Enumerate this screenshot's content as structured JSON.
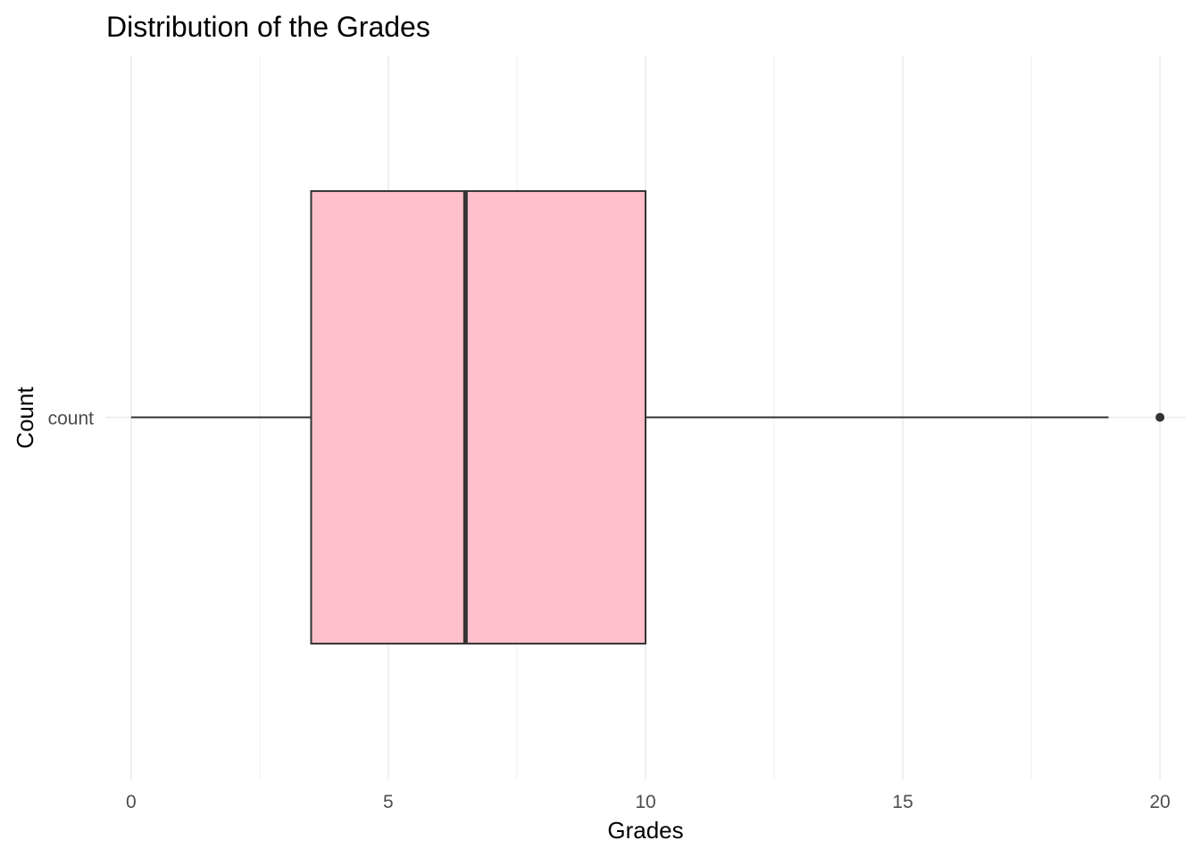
{
  "chart_data": {
    "type": "boxplot",
    "orientation": "horizontal",
    "title": "Distribution of the Grades",
    "xlabel": "Grades",
    "ylabel": "Count",
    "xlim": [
      -0.5,
      20.5
    ],
    "x_ticks": [
      0,
      5,
      10,
      15,
      20
    ],
    "x_tick_labels": [
      "0",
      "5",
      "10",
      "15",
      "20"
    ],
    "categories": [
      "count"
    ],
    "boxes": [
      {
        "category": "count",
        "whisker_low": 0,
        "q1": 3.5,
        "median": 6.5,
        "q3": 10,
        "whisker_high": 19,
        "outliers": [
          20
        ]
      }
    ],
    "grid": true,
    "legend": "none",
    "colors": {
      "box_fill": "#ffc0cb",
      "box_stroke": "#333333",
      "grid_major": "#ebebeb",
      "grid_minor": "#f2f2f2"
    }
  }
}
